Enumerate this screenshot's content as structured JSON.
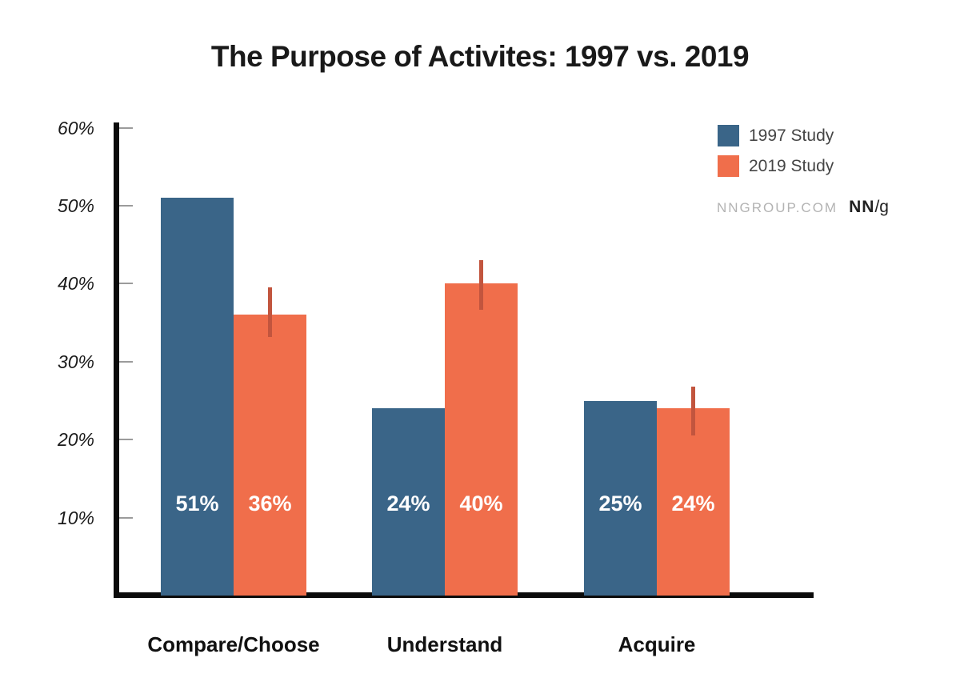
{
  "chart_data": {
    "type": "bar",
    "title": "The Purpose of Activites: 1997 vs. 2019",
    "categories": [
      "Compare/Choose",
      "Understand",
      "Acquire"
    ],
    "series": [
      {
        "name": "1997 Study",
        "color": "#3A6588",
        "values": [
          51,
          24,
          25
        ],
        "labels": [
          "51%",
          "24%",
          "25%"
        ]
      },
      {
        "name": "2019 Study",
        "color": "#F06E4B",
        "values": [
          36,
          40,
          24
        ],
        "labels": [
          "36%",
          "40%",
          "24%"
        ],
        "error_color": "#C2553E",
        "error_bars": [
          {
            "low": 33.2,
            "high": 39.5
          },
          {
            "low": 36.7,
            "high": 43.0
          },
          {
            "low": 20.5,
            "high": 26.8
          }
        ]
      }
    ],
    "y_axis": {
      "min": 0,
      "max": 60,
      "tick_values": [
        10,
        20,
        30,
        40,
        50,
        60
      ],
      "tick_labels": [
        "10%",
        "20%",
        "30%",
        "40%",
        "50%",
        "60%"
      ]
    },
    "legend_position": "top-right",
    "grid": false,
    "branding": {
      "site": "NNGROUP.COM",
      "logo_bold": "NN",
      "logo_rest": "/g"
    }
  }
}
